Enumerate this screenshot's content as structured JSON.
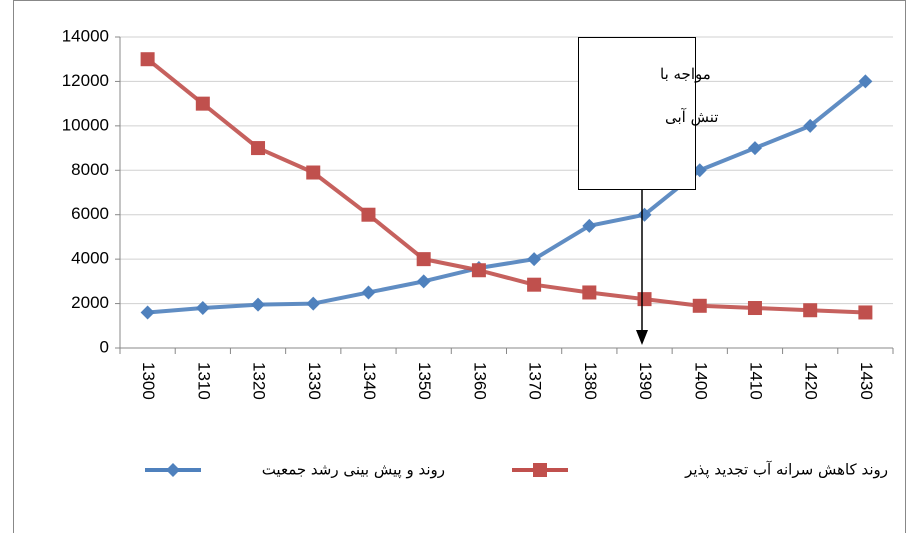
{
  "chart_data": {
    "type": "line",
    "categories": [
      "1300",
      "1310",
      "1320",
      "1330",
      "1340",
      "1350",
      "1360",
      "1370",
      "1380",
      "1390",
      "1400",
      "1410",
      "1420",
      "1430"
    ],
    "series": [
      {
        "name": "روند و پیش بینی رشد جمعیت",
        "color": "#4f81bd",
        "marker": "diamond",
        "values": [
          1600,
          1800,
          1950,
          2000,
          2500,
          3000,
          3600,
          4000,
          5500,
          6000,
          8000,
          9000,
          10000,
          12000
        ]
      },
      {
        "name": "روند  کاهش سرانه آب تجدید پذیر",
        "color": "#c0504d",
        "marker": "square",
        "values": [
          13000,
          11000,
          9000,
          7900,
          6000,
          4000,
          3500,
          2850,
          2500,
          2200,
          1900,
          1800,
          1700,
          1600
        ]
      }
    ],
    "ylim": [
      0,
      14000
    ],
    "yticks": [
      0,
      2000,
      4000,
      6000,
      8000,
      10000,
      12000,
      14000
    ],
    "grid": true,
    "legend": "bottom",
    "annotation": [
      "مواجه   با",
      "تنش آبی"
    ]
  }
}
